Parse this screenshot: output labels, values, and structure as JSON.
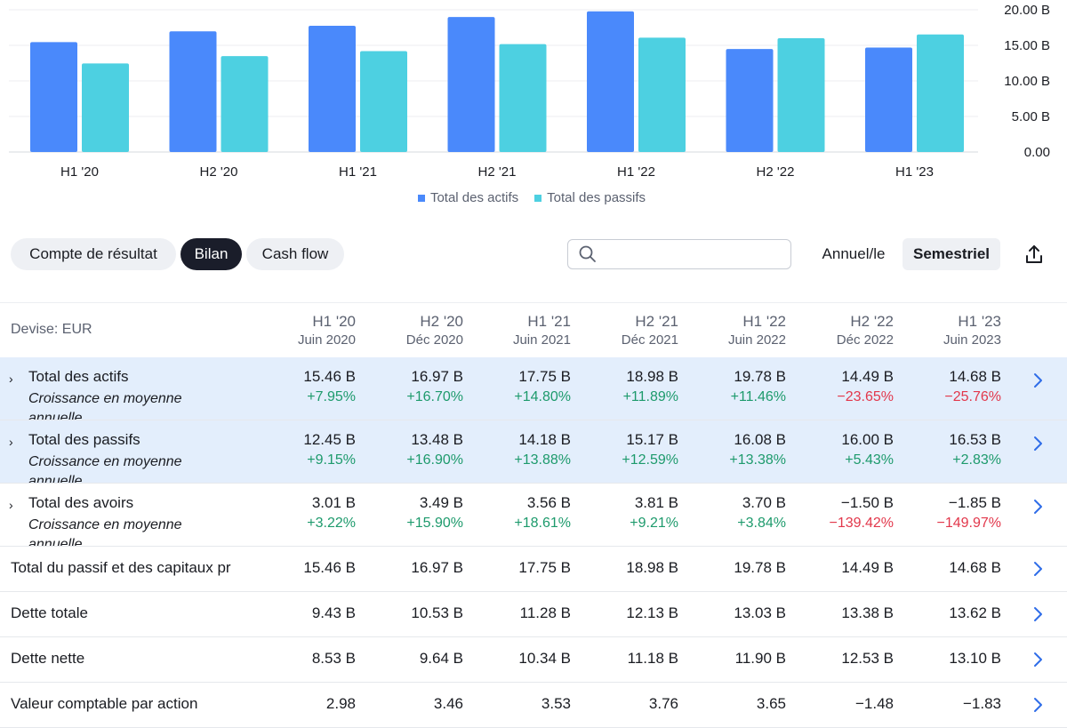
{
  "colors": {
    "assets": "#4a89fb",
    "liabilities": "#4dd0e1",
    "positive": "#1d9a6c",
    "negative": "#e2374b"
  },
  "chart_data": {
    "type": "bar",
    "categories": [
      "H1 '20",
      "H2 '20",
      "H1 '21",
      "H2 '21",
      "H1 '22",
      "H2 '22",
      "H1 '23"
    ],
    "series": [
      {
        "name": "Total des actifs",
        "color": "#4a89fb",
        "values": [
          15.46,
          16.97,
          17.75,
          18.98,
          19.78,
          14.49,
          14.68
        ]
      },
      {
        "name": "Total des passifs",
        "color": "#4dd0e1",
        "values": [
          12.45,
          13.48,
          14.18,
          15.17,
          16.08,
          16.0,
          16.53
        ]
      }
    ],
    "y_ticks": [
      "20.00 B",
      "15.00 B",
      "10.00 B",
      "5.00 B",
      "0.00"
    ],
    "ylim": [
      0,
      20
    ],
    "grid": true,
    "legend_position": "bottom"
  },
  "tabs": [
    {
      "label": "Compte de résultat",
      "active": false
    },
    {
      "label": "Bilan",
      "active": true
    },
    {
      "label": "Cash flow",
      "active": false
    }
  ],
  "search": {
    "placeholder": "",
    "value": ""
  },
  "period": {
    "annual": "Annuel/le",
    "semiannual": "Semestriel",
    "selected": "Semestriel"
  },
  "export_icon": "share-icon",
  "table": {
    "currency_label": "Devise: EUR",
    "columns": [
      {
        "period": "H1 '20",
        "date": "Juin 2020"
      },
      {
        "period": "H2 '20",
        "date": "Déc 2020"
      },
      {
        "period": "H1 '21",
        "date": "Juin 2021"
      },
      {
        "period": "H2 '21",
        "date": "Déc 2021"
      },
      {
        "period": "H1 '22",
        "date": "Juin 2022"
      },
      {
        "period": "H2 '22",
        "date": "Déc 2022"
      },
      {
        "period": "H1 '23",
        "date": "Juin 2023"
      }
    ],
    "rows": [
      {
        "label": "Total des actifs",
        "sublabel": "Croissance en moyenne annuelle",
        "expandable": true,
        "highlight": true,
        "values": [
          "15.46 B",
          "16.97 B",
          "17.75 B",
          "18.98 B",
          "19.78 B",
          "14.49 B",
          "14.68 B"
        ],
        "growth": [
          "+7.95%",
          "+16.70%",
          "+14.80%",
          "+11.89%",
          "+11.46%",
          "−23.65%",
          "−25.76%"
        ]
      },
      {
        "label": "Total des passifs",
        "sublabel": "Croissance en moyenne annuelle",
        "expandable": true,
        "highlight": true,
        "values": [
          "12.45 B",
          "13.48 B",
          "14.18 B",
          "15.17 B",
          "16.08 B",
          "16.00 B",
          "16.53 B"
        ],
        "growth": [
          "+9.15%",
          "+16.90%",
          "+13.88%",
          "+12.59%",
          "+13.38%",
          "+5.43%",
          "+2.83%"
        ]
      },
      {
        "label": "Total des avoirs",
        "sublabel": "Croissance en moyenne annuelle",
        "expandable": true,
        "highlight": false,
        "values": [
          "3.01 B",
          "3.49 B",
          "3.56 B",
          "3.81 B",
          "3.70 B",
          "−1.50 B",
          "−1.85 B"
        ],
        "growth": [
          "+3.22%",
          "+15.90%",
          "+18.61%",
          "+9.21%",
          "+3.84%",
          "−139.42%",
          "−149.97%"
        ]
      },
      {
        "label": "Total du passif et des capitaux pr",
        "expandable": false,
        "highlight": false,
        "values": [
          "15.46 B",
          "16.97 B",
          "17.75 B",
          "18.98 B",
          "19.78 B",
          "14.49 B",
          "14.68 B"
        ]
      },
      {
        "label": "Dette totale",
        "expandable": false,
        "highlight": false,
        "values": [
          "9.43 B",
          "10.53 B",
          "11.28 B",
          "12.13 B",
          "13.03 B",
          "13.38 B",
          "13.62 B"
        ]
      },
      {
        "label": "Dette nette",
        "expandable": false,
        "highlight": false,
        "values": [
          "8.53 B",
          "9.64 B",
          "10.34 B",
          "11.18 B",
          "11.90 B",
          "12.53 B",
          "13.10 B"
        ]
      },
      {
        "label": "Valeur comptable par action",
        "expandable": false,
        "highlight": false,
        "values": [
          "2.98",
          "3.46",
          "3.53",
          "3.76",
          "3.65",
          "−1.48",
          "−1.83"
        ]
      }
    ]
  }
}
